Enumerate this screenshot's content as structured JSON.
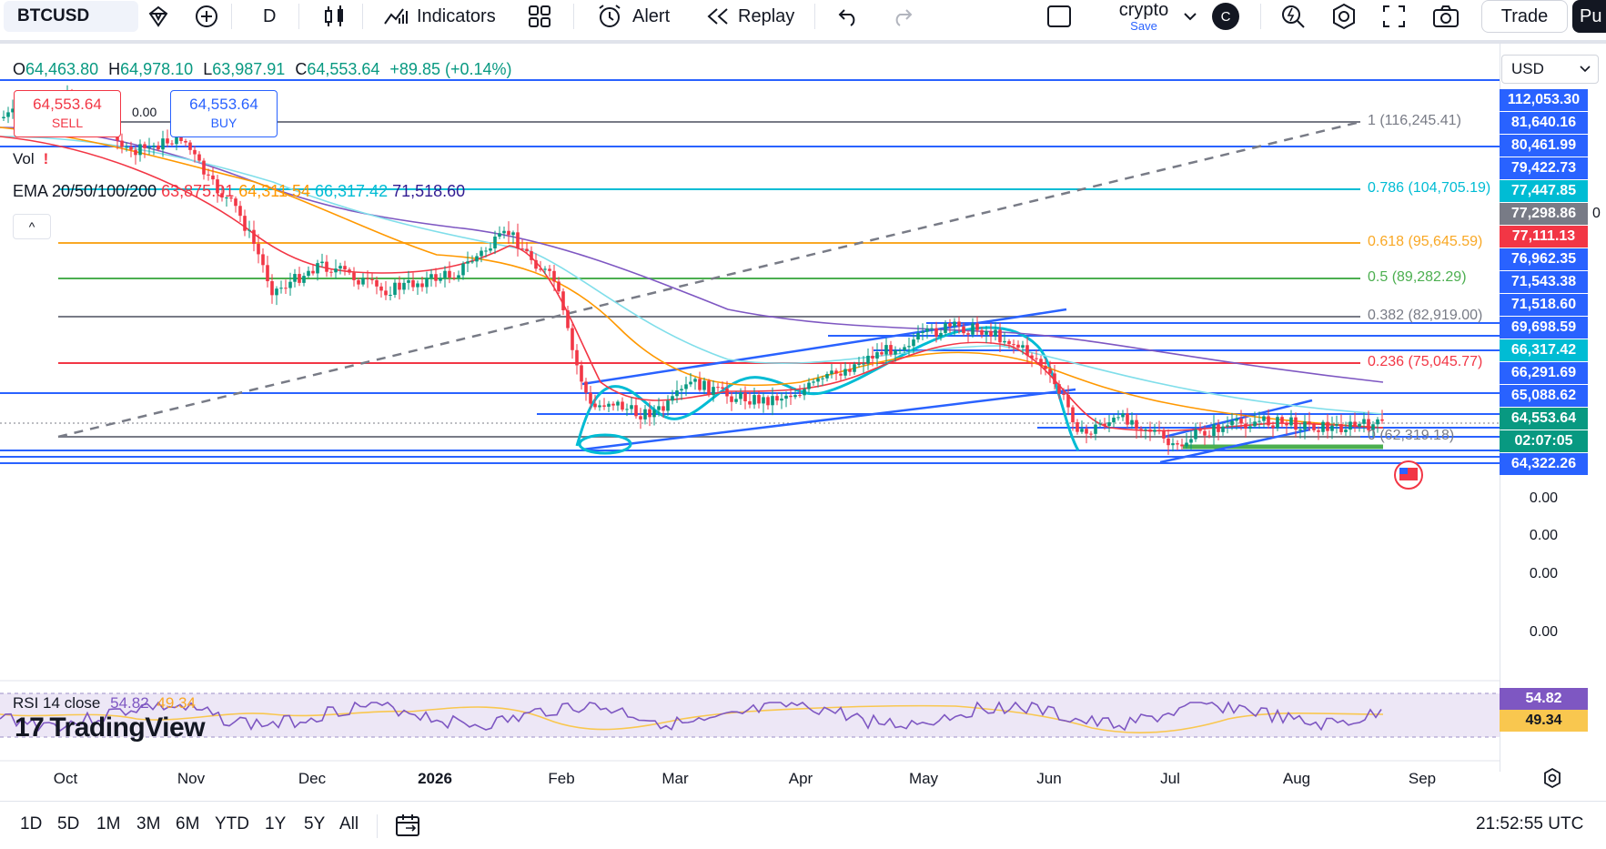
{
  "toolbar": {
    "symbol": "BTCUSD",
    "interval": "D",
    "indicators_label": "Indicators",
    "alert_label": "Alert",
    "replay_label": "Replay",
    "layout_name": "crypto",
    "layout_save": "Save",
    "avatar_letter": "C",
    "trade_label": "Trade",
    "publish_label": "Pu"
  },
  "legend": {
    "open_label": "O",
    "open": "64,463.80",
    "high_label": "H",
    "high": "64,978.10",
    "low_label": "L",
    "low": "63,987.91",
    "close_label": "C",
    "close": "64,553.64",
    "change": "+89.85 (+0.14%)"
  },
  "trade": {
    "sell_price": "64,553.64",
    "sell_label": "SELL",
    "buy_price": "64,553.64",
    "buy_label": "BUY",
    "spread": "0.00"
  },
  "indicators": {
    "vol_label": "Vol",
    "vol_warning": "!",
    "ema_label": "EMA 20/50/100/200",
    "ema20": "63,875.01",
    "ema50": "64,311.54",
    "ema100": "66,317.42",
    "ema200": "71,518.60",
    "collapse_icon": "^",
    "rsi_label": "RSI 14 close",
    "rsi_value": "54.82",
    "rsi_ma": "49.34"
  },
  "fib_labels": [
    {
      "text": "1 (116,245.41)",
      "color": "#787b86"
    },
    {
      "text": "0.786 (104,705.19)",
      "color": "#00bcd4"
    },
    {
      "text": "0.618 (95,645.59)",
      "color": "#f9a825"
    },
    {
      "text": "0.5 (89,282.29)",
      "color": "#4caf50"
    },
    {
      "text": "0.382 (82,919.00)",
      "color": "#787b86"
    },
    {
      "text": "0.236 (75,045.77)",
      "color": "#f23645"
    },
    {
      "text": "0 (62,319.18)",
      "color": "#787b86"
    }
  ],
  "price_scale": {
    "currency": "USD",
    "labels": [
      {
        "text": "112,053.30",
        "bg": "#2962ff"
      },
      {
        "text": "81,640.16",
        "bg": "#2962ff"
      },
      {
        "text": "80,461.99",
        "bg": "#2962ff"
      },
      {
        "text": "79,422.73",
        "bg": "#2962ff"
      },
      {
        "text": "77,447.85",
        "bg": "#00bcd4"
      },
      {
        "text": "77,298.86",
        "bg": "#787b86"
      },
      {
        "text": "77,111.13",
        "bg": "#f23645"
      },
      {
        "text": "76,962.35",
        "bg": "#2962ff"
      },
      {
        "text": "71,543.38",
        "bg": "#2962ff"
      },
      {
        "text": "71,518.60",
        "bg": "#2962ff"
      },
      {
        "text": "69,698.59",
        "bg": "#2962ff"
      },
      {
        "text": "66,317.42",
        "bg": "#00bcd4"
      },
      {
        "text": "66,291.69",
        "bg": "#2962ff"
      },
      {
        "text": "65,088.62",
        "bg": "#2962ff"
      },
      {
        "text": "64,553.64",
        "bg": "#089981"
      },
      {
        "text": "02:07:05",
        "bg": "#089981"
      },
      {
        "text": "64,322.26",
        "bg": "#2962ff"
      }
    ],
    "extra_zero": "0",
    "pane_values": [
      "0.00",
      "0.00",
      "0.00",
      "0.00"
    ],
    "rsi_labels": [
      {
        "text": "54.82",
        "bg": "#7e57c2"
      },
      {
        "text": "49.34",
        "bg": "#f9c74f"
      }
    ]
  },
  "logo": {
    "mark": "17",
    "text": "TradingView"
  },
  "time_axis": [
    "Oct",
    "Nov",
    "Dec",
    "2026",
    "Feb",
    "Mar",
    "Apr",
    "May",
    "Jun",
    "Jul",
    "Aug",
    "Sep"
  ],
  "bottombar": {
    "ranges": [
      "1D",
      "5D",
      "1M",
      "3M",
      "6M",
      "YTD",
      "1Y",
      "5Y",
      "All"
    ],
    "clock": "21:52:55 UTC"
  }
}
